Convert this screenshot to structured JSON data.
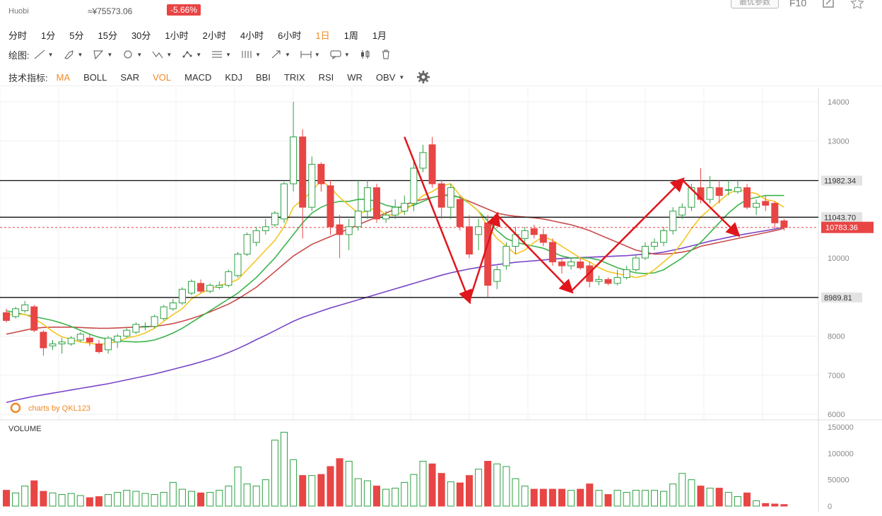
{
  "header": {
    "exchange": "Huobi",
    "cny_price": "≈¥75573.06",
    "change_pct": "-5.66%",
    "params_button": "最优参数",
    "f10": "F10"
  },
  "timeframes": [
    "分时",
    "1分",
    "5分",
    "15分",
    "30分",
    "1小时",
    "2小时",
    "4小时",
    "6小时",
    "1日",
    "1周",
    "1月"
  ],
  "active_timeframe": "1日",
  "drawing": {
    "label": "绘图:"
  },
  "indicators": {
    "label": "技术指标:",
    "items": [
      "MA",
      "BOLL",
      "SAR",
      "VOL",
      "MACD",
      "KDJ",
      "BBI",
      "TRIX",
      "RSI",
      "WR",
      "OBV"
    ],
    "active": [
      "MA",
      "VOL"
    ]
  },
  "chart_data": {
    "type": "candlestick",
    "ylim": [
      6000,
      14000
    ],
    "yticks": [
      "14000",
      "13000",
      "12000",
      "11000",
      "10000",
      "9000",
      "8000",
      "7000",
      "6000"
    ],
    "watermark": "charts by QKL123",
    "hlines": [
      {
        "value": 11982.34,
        "label": "11982.34"
      },
      {
        "value": 11043.7,
        "label": "11043.70"
      },
      {
        "value": 8989.81,
        "label": "8989.81"
      }
    ],
    "current_price": {
      "value": 10783.36,
      "label": "10783.36"
    },
    "colors": {
      "up": "#2ea043",
      "down": "#e84545",
      "ma5": "#f3c623",
      "ma10": "#3cb44b",
      "ma30": "#c94b4b",
      "ma60": "#7a45c7",
      "arrow": "#e0161c"
    },
    "candles": [
      [
        8600,
        8400,
        8700,
        8350
      ],
      [
        8500,
        8700,
        8750,
        8450
      ],
      [
        8650,
        8800,
        8900,
        8600
      ],
      [
        8750,
        8150,
        8800,
        8100
      ],
      [
        8100,
        7700,
        8150,
        7500
      ],
      [
        7750,
        7800,
        7900,
        7650
      ],
      [
        7800,
        7850,
        7950,
        7550
      ],
      [
        7800,
        7950,
        8000,
        7750
      ],
      [
        7900,
        8050,
        8100,
        7850
      ],
      [
        7950,
        7850,
        8050,
        7750
      ],
      [
        7800,
        7600,
        7900,
        7550
      ],
      [
        7650,
        7950,
        8000,
        7550
      ],
      [
        7850,
        8000,
        8050,
        7700
      ],
      [
        8000,
        8150,
        8200,
        7950
      ],
      [
        8100,
        8300,
        8350,
        8050
      ],
      [
        8250,
        8250,
        8350,
        8150
      ],
      [
        8250,
        8500,
        8550,
        8200
      ],
      [
        8450,
        8750,
        8800,
        8400
      ],
      [
        8700,
        8850,
        8950,
        8650
      ],
      [
        8850,
        9200,
        9250,
        8800
      ],
      [
        9100,
        9400,
        9450,
        9050
      ],
      [
        9350,
        9150,
        9450,
        9100
      ],
      [
        9150,
        9300,
        9350,
        9100
      ],
      [
        9250,
        9300,
        9400,
        9200
      ],
      [
        9300,
        9650,
        9700,
        9250
      ],
      [
        9550,
        10100,
        10150,
        9500
      ],
      [
        10100,
        10600,
        10650,
        10050
      ],
      [
        10400,
        10700,
        10800,
        10300
      ],
      [
        10700,
        10800,
        11000,
        10600
      ],
      [
        10850,
        11150,
        11200,
        10800
      ],
      [
        11000,
        11900,
        11950,
        10900
      ],
      [
        11900,
        13100,
        14000,
        11700
      ],
      [
        13100,
        11300,
        13300,
        10500
      ],
      [
        11300,
        12400,
        12600,
        11200
      ],
      [
        12400,
        11900,
        12450,
        11700
      ],
      [
        11850,
        10800,
        12000,
        10600
      ],
      [
        10850,
        10600,
        11100,
        10000
      ],
      [
        10600,
        10800,
        11000,
        10200
      ],
      [
        10800,
        11200,
        12000,
        10700
      ],
      [
        11200,
        11800,
        12000,
        11000
      ],
      [
        11800,
        11000,
        11900,
        10900
      ],
      [
        11000,
        11100,
        11200,
        10900
      ],
      [
        11100,
        11300,
        11500,
        11000
      ],
      [
        11200,
        11400,
        11600,
        11100
      ],
      [
        11400,
        12300,
        12500,
        11200
      ],
      [
        12300,
        12700,
        12900,
        12200
      ],
      [
        12900,
        11900,
        13100,
        11800
      ],
      [
        11900,
        11300,
        12000,
        11000
      ],
      [
        11300,
        11800,
        11900,
        11000
      ],
      [
        11500,
        10800,
        11600,
        10700
      ],
      [
        10800,
        10100,
        11100,
        10000
      ],
      [
        10600,
        10800,
        11000,
        10200
      ],
      [
        10900,
        9300,
        11100,
        9000
      ],
      [
        9400,
        9700,
        9800,
        9200
      ],
      [
        9800,
        10300,
        10400,
        9700
      ],
      [
        10300,
        10600,
        10800,
        10100
      ],
      [
        10500,
        10700,
        10800,
        10400
      ],
      [
        10750,
        10600,
        10850,
        10500
      ],
      [
        10600,
        10400,
        10750,
        10300
      ],
      [
        10400,
        9900,
        10500,
        9800
      ],
      [
        9900,
        9800,
        10000,
        9600
      ],
      [
        9800,
        9900,
        10000,
        9700
      ],
      [
        9900,
        9750,
        10000,
        9700
      ],
      [
        9800,
        9400,
        9900,
        9250
      ],
      [
        9400,
        9450,
        9550,
        9300
      ],
      [
        9450,
        9350,
        9500,
        9300
      ],
      [
        9350,
        9500,
        9700,
        9300
      ],
      [
        9500,
        9700,
        9800,
        9450
      ],
      [
        9700,
        10000,
        10100,
        9650
      ],
      [
        10000,
        10300,
        10400,
        9950
      ],
      [
        10300,
        10400,
        10500,
        10200
      ],
      [
        10400,
        10700,
        10800,
        10300
      ],
      [
        10700,
        11200,
        11300,
        10600
      ],
      [
        11100,
        11300,
        11400,
        11000
      ],
      [
        11300,
        11800,
        11900,
        11200
      ],
      [
        11800,
        11500,
        12300,
        11400
      ],
      [
        11500,
        11800,
        12100,
        11400
      ],
      [
        11800,
        11600,
        12000,
        11400
      ],
      [
        11750,
        11750,
        12000,
        11600
      ],
      [
        11700,
        11800,
        12000,
        11650
      ],
      [
        11800,
        11300,
        11900,
        11250
      ],
      [
        11300,
        11400,
        11500,
        11100
      ],
      [
        11450,
        11350,
        11600,
        11200
      ],
      [
        11400,
        10900,
        11450,
        10750
      ],
      [
        10950,
        10780,
        11000,
        10700
      ]
    ],
    "ma5": [
      8550,
      8550,
      8560,
      8450,
      8300,
      8120,
      7980,
      7920,
      7850,
      7820,
      7780,
      7820,
      7860,
      7950,
      8000,
      8080,
      8200,
      8380,
      8550,
      8700,
      8950,
      9100,
      9200,
      9300,
      9350,
      9450,
      9700,
      9950,
      10200,
      10450,
      10800,
      11300,
      11500,
      11700,
      12000,
      11800,
      11550,
      11350,
      11150,
      11200,
      11300,
      11100,
      11100,
      11200,
      11400,
      11600,
      11700,
      11850,
      11900,
      11600,
      11400,
      11200,
      10800,
      10500,
      10300,
      10100,
      10200,
      10400,
      10550,
      10450,
      10300,
      10150,
      10000,
      9900,
      9750,
      9650,
      9600,
      9550,
      9500,
      9550,
      9700,
      9900,
      10100,
      10400,
      10750,
      11050,
      11250,
      11450,
      11650,
      11750,
      11700,
      11650,
      11500,
      11450,
      11300
    ],
    "ma10": [
      8650,
      8600,
      8550,
      8500,
      8450,
      8400,
      8330,
      8250,
      8150,
      8050,
      7970,
      7920,
      7880,
      7860,
      7850,
      7860,
      7900,
      7980,
      8080,
      8200,
      8350,
      8500,
      8650,
      8800,
      8950,
      9100,
      9300,
      9500,
      9750,
      10000,
      10300,
      10600,
      10900,
      11150,
      11300,
      11400,
      11450,
      11450,
      11500,
      11500,
      11450,
      11350,
      11300,
      11300,
      11350,
      11450,
      11550,
      11600,
      11600,
      11550,
      11400,
      11200,
      10950,
      10700,
      10500,
      10400,
      10350,
      10300,
      10250,
      10150,
      10050,
      10000,
      10000,
      10000,
      9950,
      9850,
      9750,
      9680,
      9620,
      9600,
      9620,
      9700,
      9850,
      10000,
      10200,
      10400,
      10650,
      10900,
      11150,
      11350,
      11500,
      11550,
      11600,
      11600,
      11600
    ],
    "ma30": [
      8050,
      8100,
      8150,
      8200,
      8220,
      8230,
      8230,
      8230,
      8220,
      8210,
      8200,
      8200,
      8210,
      8220,
      8230,
      8240,
      8250,
      8280,
      8320,
      8380,
      8450,
      8530,
      8620,
      8720,
      8820,
      8950,
      9100,
      9250,
      9450,
      9650,
      9850,
      10050,
      10200,
      10350,
      10450,
      10550,
      10650,
      10750,
      10850,
      10950,
      11050,
      11150,
      11250,
      11350,
      11450,
      11500,
      11550,
      11600,
      11620,
      11550,
      11450,
      11350,
      11250,
      11150,
      11100,
      11070,
      11050,
      11030,
      11000,
      10950,
      10900,
      10850,
      10780,
      10700,
      10600,
      10500,
      10400,
      10300,
      10200,
      10150,
      10100,
      10100,
      10120,
      10150,
      10200,
      10300,
      10350,
      10400,
      10450,
      10500,
      10550,
      10600,
      10650,
      10700,
      10760
    ],
    "ma60": [
      6300,
      6360,
      6410,
      6460,
      6500,
      6540,
      6580,
      6620,
      6660,
      6700,
      6740,
      6780,
      6830,
      6880,
      6930,
      6980,
      7030,
      7090,
      7150,
      7210,
      7270,
      7340,
      7410,
      7490,
      7580,
      7680,
      7790,
      7910,
      8020,
      8140,
      8260,
      8380,
      8480,
      8560,
      8640,
      8720,
      8790,
      8860,
      8930,
      9000,
      9070,
      9140,
      9210,
      9280,
      9350,
      9420,
      9490,
      9560,
      9620,
      9670,
      9720,
      9760,
      9800,
      9830,
      9860,
      9890,
      9910,
      9930,
      9950,
      9970,
      9990,
      10000,
      10010,
      10020,
      10030,
      10040,
      10050,
      10060,
      10080,
      10100,
      10120,
      10150,
      10200,
      10250,
      10310,
      10370,
      10430,
      10480,
      10530,
      10580,
      10620,
      10660,
      10700,
      10740,
      10790
    ],
    "arrows": [
      [
        [
          43,
          13100
        ],
        [
          50,
          8900
        ]
      ],
      [
        [
          50,
          8900
        ],
        [
          53,
          11100
        ]
      ],
      [
        [
          53,
          11100
        ],
        [
          61,
          9150
        ]
      ],
      [
        [
          61,
          9150
        ],
        [
          73,
          12000
        ]
      ],
      [
        [
          73,
          12000
        ],
        [
          79,
          10600
        ]
      ]
    ],
    "volume": {
      "label": "VOLUME",
      "ylim": [
        0,
        150000
      ],
      "yticks": [
        "150000",
        "100000",
        "50000",
        "0"
      ],
      "values": [
        30000,
        25000,
        38000,
        48000,
        28000,
        25000,
        22000,
        24000,
        20000,
        16000,
        18000,
        22000,
        26000,
        30000,
        28000,
        24000,
        22000,
        26000,
        45000,
        32000,
        28000,
        25000,
        26000,
        30000,
        38000,
        74000,
        42000,
        38000,
        50000,
        125000,
        140000,
        88000,
        58000,
        58000,
        60000,
        75000,
        90000,
        85000,
        52000,
        48000,
        38000,
        32000,
        34000,
        45000,
        60000,
        85000,
        80000,
        62000,
        46000,
        44000,
        58000,
        70000,
        85000,
        80000,
        75000,
        52000,
        38000,
        32000,
        32000,
        32000,
        32000,
        30000,
        32000,
        42000,
        30000,
        22000,
        30000,
        26000,
        30000,
        30000,
        30000,
        28000,
        42000,
        62000,
        50000,
        38000,
        34000,
        34000,
        26000,
        18000,
        25000,
        10000,
        5000,
        4000,
        3000
      ]
    }
  }
}
